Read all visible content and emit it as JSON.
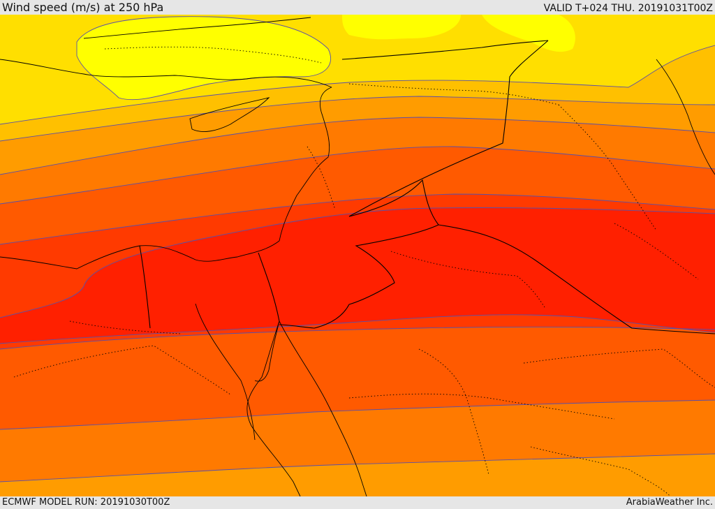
{
  "header": {
    "title": "Wind speed (m/s) at 250 hPa",
    "valid_time": "VALID T+024 THU. 20191031T00Z"
  },
  "footer": {
    "model_run": "ECMWF MODEL RUN: 20191030T00Z",
    "credit": "ArabiaWeather Inc."
  },
  "map": {
    "variable": "wind speed",
    "level_hpa": 250,
    "units": "m/s",
    "colors": {
      "band_1": "#ffff00",
      "band_2": "#ffdf00",
      "band_3": "#ffc000",
      "band_4": "#ff9c00",
      "band_5": "#ff7a00",
      "band_6": "#ff5a00",
      "band_7": "#ff3a00",
      "band_8": "#ff2000",
      "contour_line": "#5a4fa8",
      "border_line": "#000000"
    }
  }
}
